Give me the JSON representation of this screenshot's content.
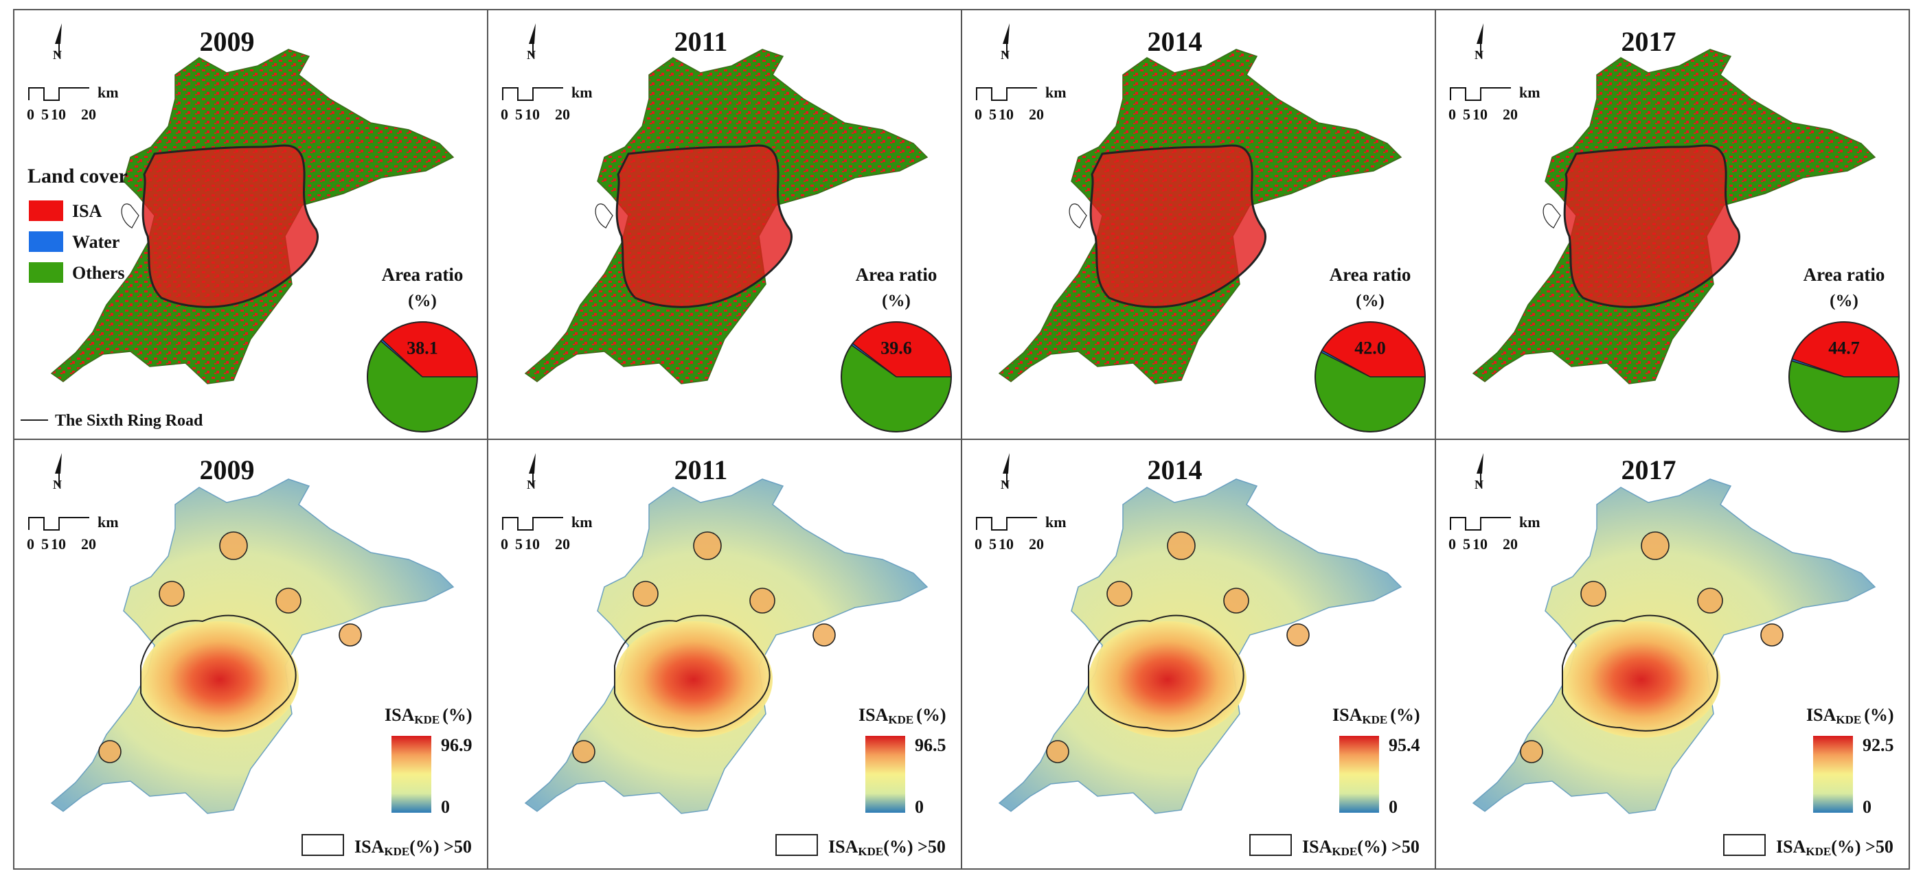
{
  "compass_label": "N",
  "scale": {
    "ticks": [
      "0",
      "5",
      "10",
      "20"
    ],
    "unit": "km"
  },
  "legend": {
    "title": "Land cover",
    "items": [
      {
        "label": "ISA",
        "color": "#ee1111"
      },
      {
        "label": "Water",
        "color": "#1c6fe6"
      },
      {
        "label": "Others",
        "color": "#3aa010"
      }
    ],
    "ring_road_label": "The Sixth Ring Road"
  },
  "area_ratio_label": "Area ratio",
  "area_ratio_unit": "(%)",
  "kde": {
    "title_main": "ISA",
    "title_sub": "KDE",
    "title_unit": "(%)",
    "min_label": "0",
    "contour_label_main": "ISA",
    "contour_label_sub": "KDE",
    "contour_label_tail": "(%) >50",
    "gradient": [
      "#d7191c",
      "#f5a05a",
      "#f7f08a",
      "#d9eba0",
      "#2c7bb6"
    ]
  },
  "panels": [
    {
      "year": "2009",
      "isa_percent": 38.1,
      "isa_label": "38.1",
      "water_percent": 0.6,
      "kde_max": "96.9"
    },
    {
      "year": "2011",
      "isa_percent": 39.6,
      "isa_label": "39.6",
      "water_percent": 0.6,
      "kde_max": "96.5"
    },
    {
      "year": "2014",
      "isa_percent": 42.0,
      "isa_label": "42.0",
      "water_percent": 0.6,
      "kde_max": "95.4"
    },
    {
      "year": "2017",
      "isa_percent": 44.7,
      "isa_label": "44.7",
      "water_percent": 0.6,
      "kde_max": "92.5"
    }
  ]
}
